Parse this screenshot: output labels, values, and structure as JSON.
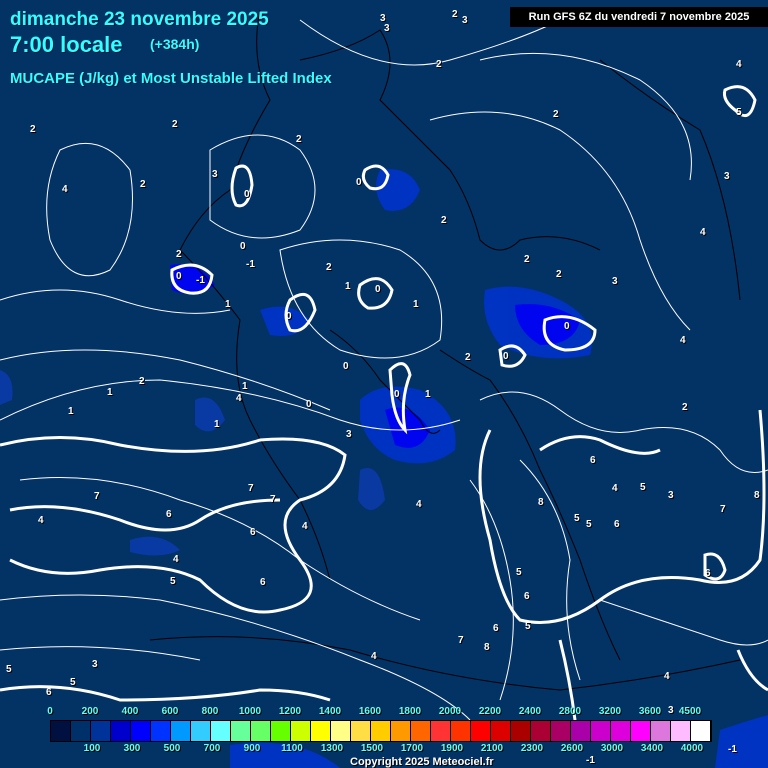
{
  "header": {
    "date": "dimanche 23 novembre 2025",
    "time": "7:00 locale",
    "lead": "(+384h)",
    "parameter": "MUCAPE (J/kg) et Most Unstable Lifted Index",
    "run": "Run GFS 6Z du vendredi 7 novembre 2025"
  },
  "colors": {
    "background": "#033265",
    "contour": "#ffffff",
    "cape_low": "#0033cc",
    "cape_mid": "#0000ff"
  },
  "contour_labels": [
    "2",
    "3",
    "3",
    "3",
    "2",
    "4",
    "5",
    "2",
    "2",
    "3",
    "2",
    "4",
    "2",
    "0",
    "0",
    "0",
    "-1",
    "0",
    "-1",
    "1",
    "0",
    "1",
    "1",
    "0",
    "2",
    "2",
    "0",
    "0",
    "1",
    "2",
    "0",
    "1",
    "3",
    "4",
    "1",
    "1",
    "1",
    "2",
    "0",
    "2",
    "3",
    "4",
    "6",
    "4",
    "5",
    "3",
    "8",
    "7",
    "7",
    "7",
    "4",
    "6",
    "6",
    "5",
    "5",
    "6",
    "7",
    "8",
    "6",
    "5",
    "4",
    "5",
    "6",
    "6",
    "5",
    "7",
    "8",
    "6",
    "4",
    "4",
    "3",
    "4",
    "6",
    "3",
    "5",
    "5",
    "4",
    "2",
    "4",
    "2",
    "2",
    "2",
    "3",
    "0",
    "-1",
    "-1"
  ],
  "colorbar": {
    "colors": [
      "#001040",
      "#00306a",
      "#003399",
      "#0000cc",
      "#0000ff",
      "#0033ff",
      "#0099ff",
      "#33ccff",
      "#66ffff",
      "#66ff99",
      "#66ff66",
      "#66ff00",
      "#ccff00",
      "#ffff00",
      "#ffff88",
      "#ffdd44",
      "#ffcc00",
      "#ff9900",
      "#ff6600",
      "#ff3333",
      "#ff3300",
      "#ff0000",
      "#dd0000",
      "#aa0000",
      "#aa0033",
      "#aa0066",
      "#aa00aa",
      "#cc00cc",
      "#dd00dd",
      "#ff00ff",
      "#dd77dd",
      "#ffbbff",
      "#ffffff"
    ],
    "top_labels": [
      "0",
      "200",
      "400",
      "600",
      "800",
      "1000",
      "1200",
      "1400",
      "1600",
      "1800",
      "2000",
      "2200",
      "2400",
      "2800",
      "3200",
      "3600",
      "4500"
    ],
    "bottom_labels": [
      "100",
      "300",
      "500",
      "700",
      "900",
      "1100",
      "1300",
      "1500",
      "1700",
      "1900",
      "2100",
      "2300",
      "2600",
      "3000",
      "3400",
      "4000"
    ]
  },
  "copyright": "Copyright 2025 Meteociel.fr"
}
